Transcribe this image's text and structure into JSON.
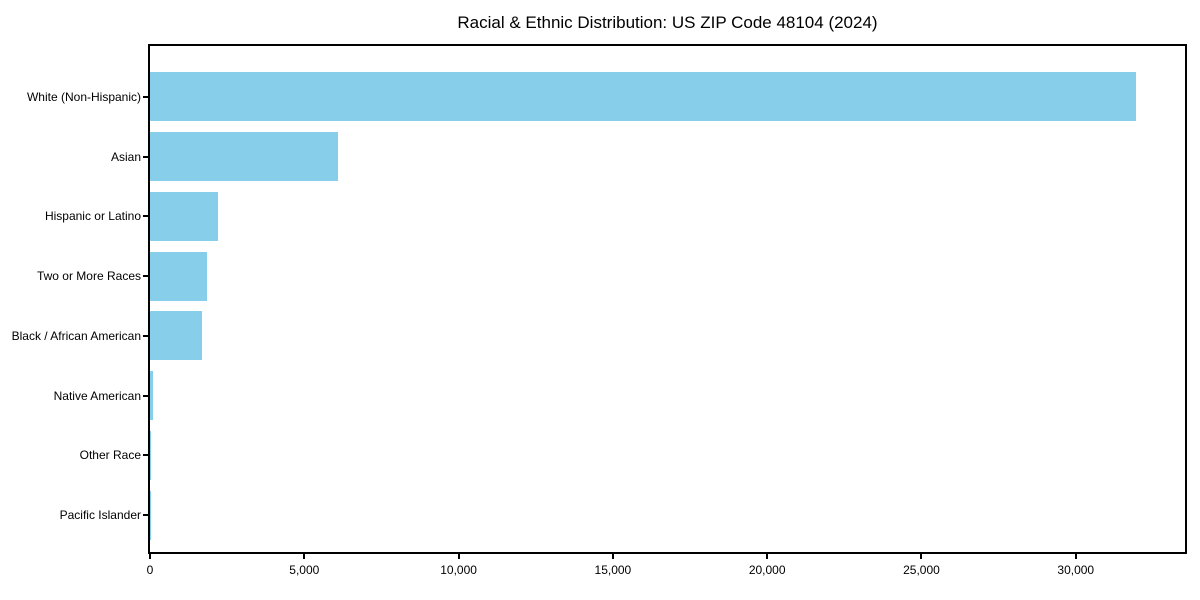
{
  "chart_data": {
    "type": "bar",
    "orientation": "horizontal",
    "title": "Racial & Ethnic Distribution: US ZIP Code 48104 (2024)",
    "categories": [
      "White (Non-Hispanic)",
      "Asian",
      "Hispanic or Latino",
      "Two or More Races",
      "Black / African American",
      "Native American",
      "Other Race",
      "Pacific Islander"
    ],
    "values": [
      31940,
      6090,
      2210,
      1845,
      1680,
      95,
      30,
      8
    ],
    "xlabel": "",
    "ylabel": "",
    "xlim": [
      0,
      33540
    ],
    "x_ticks": [
      0,
      5000,
      10000,
      15000,
      20000,
      25000,
      30000
    ],
    "x_tick_labels": [
      "0",
      "5,000",
      "10,000",
      "15,000",
      "20,000",
      "25,000",
      "30,000"
    ],
    "bar_color": "#87ceeb",
    "axis_color": "#000000",
    "text_color": "#000000",
    "grid": false,
    "legend": false
  }
}
